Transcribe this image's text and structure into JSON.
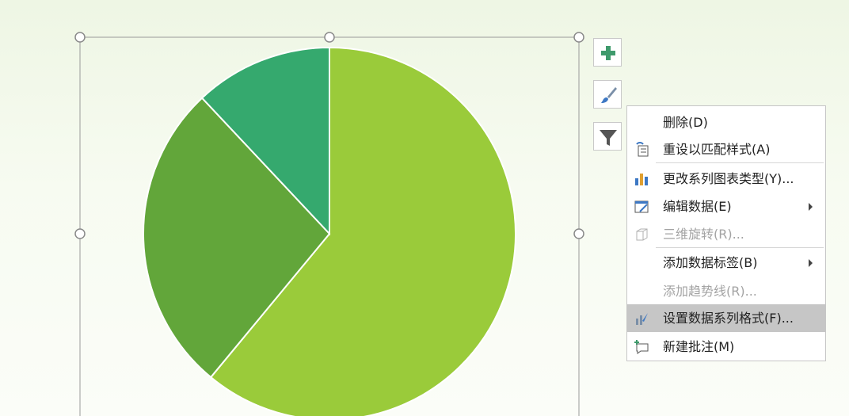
{
  "chart_data": {
    "type": "pie",
    "values": [
      61,
      27,
      12
    ],
    "colors": [
      "#9acb3a",
      "#62a63a",
      "#35a96e"
    ]
  },
  "context_menu": {
    "items": [
      "删除(D)",
      "重设以匹配样式(A)",
      "更改系列图表类型(Y)...",
      "编辑数据(E)",
      "三维旋转(R)...",
      "添加数据标签(B)",
      "添加趋势线(R)...",
      "设置数据系列格式(F)...",
      "新建批注(M)"
    ]
  }
}
